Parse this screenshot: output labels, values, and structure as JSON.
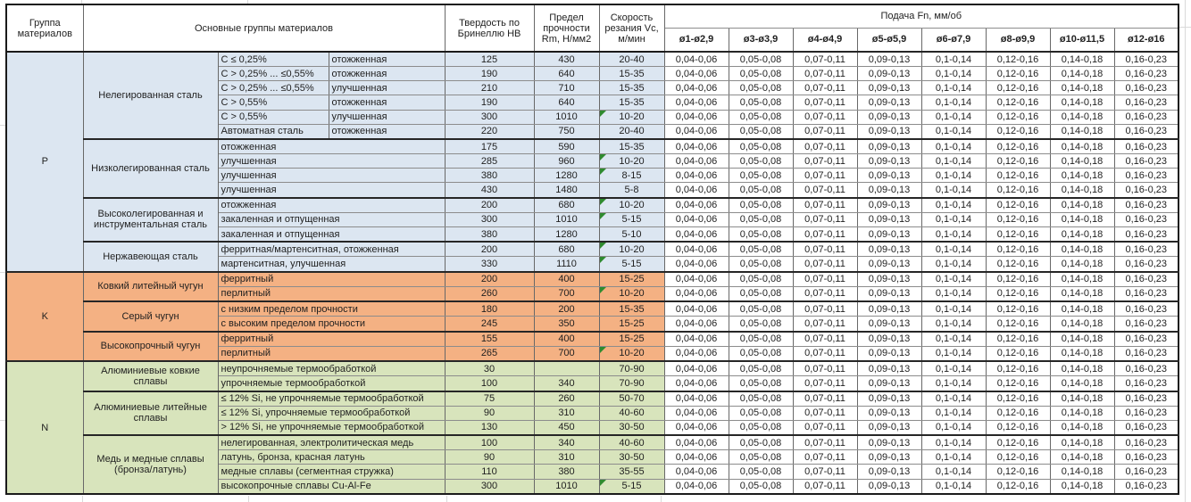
{
  "colors": {
    "group_p": "#dce6f1",
    "group_k": "#f4b183",
    "group_n": "#d8e4bc",
    "note_marker": "#2f8b2f"
  },
  "header": {
    "col_group": "Группа материалов",
    "col_materials": "Основные группы материалов",
    "col_hardness": "Твердость по Бринеллю HB",
    "col_strength": "Предел прочности Rm, Н/мм2",
    "col_speed": "Скорость резания Vc, м/мин",
    "col_feed": "Подача Fn, мм/об",
    "feed_cols": [
      "ø1-ø2,9",
      "ø3-ø3,9",
      "ø4-ø4,9",
      "ø5-ø5,9",
      "ø6-ø7,9",
      "ø8-ø9,9",
      "ø10-ø11,5",
      "ø12-ø16"
    ]
  },
  "feed_values": [
    "0,04-0,06",
    "0,05-0,08",
    "0,07-0,11",
    "0,09-0,13",
    "0,1-0,14",
    "0,12-0,16",
    "0,14-0,18",
    "0,16-0,23"
  ],
  "groups": [
    {
      "code": "P",
      "subgroups": [
        {
          "name": "Нелегированная сталь",
          "rows": [
            {
              "d": [
                "C ≤ 0,25%",
                "отожженная"
              ],
              "hb": "125",
              "rm": "430",
              "vc": "20-40",
              "note": false
            },
            {
              "d": [
                "C > 0,25% ... ≤0,55%",
                "отожженная"
              ],
              "hb": "190",
              "rm": "640",
              "vc": "15-35",
              "note": false
            },
            {
              "d": [
                "C > 0,25% ... ≤0,55%",
                "улучшенная"
              ],
              "hb": "210",
              "rm": "710",
              "vc": "15-35",
              "note": false
            },
            {
              "d": [
                "C > 0,55%",
                "отожженная"
              ],
              "hb": "190",
              "rm": "640",
              "vc": "15-35",
              "note": false
            },
            {
              "d": [
                "C > 0,55%",
                "улучшенная"
              ],
              "hb": "300",
              "rm": "1010",
              "vc": "10-20",
              "note": true
            },
            {
              "d": [
                "Автоматная сталь",
                "отожженная"
              ],
              "hb": "220",
              "rm": "750",
              "vc": "20-40",
              "note": false
            }
          ]
        },
        {
          "name": "Низколегированная сталь",
          "rows": [
            {
              "d": [
                "отожженная"
              ],
              "hb": "175",
              "rm": "590",
              "vc": "15-35",
              "note": false
            },
            {
              "d": [
                "улучшенная"
              ],
              "hb": "285",
              "rm": "960",
              "vc": "10-20",
              "note": true
            },
            {
              "d": [
                "улучшенная"
              ],
              "hb": "380",
              "rm": "1280",
              "vc": "8-15",
              "note": true
            },
            {
              "d": [
                "улучшенная"
              ],
              "hb": "430",
              "rm": "1480",
              "vc": "5-8",
              "note": false
            }
          ]
        },
        {
          "name": "Высоколегированная и инструментальная сталь",
          "rows": [
            {
              "d": [
                "отожженная"
              ],
              "hb": "200",
              "rm": "680",
              "vc": "10-20",
              "note": true
            },
            {
              "d": [
                "закаленная и отпущенная"
              ],
              "hb": "300",
              "rm": "1010",
              "vc": "5-15",
              "note": true
            },
            {
              "d": [
                "закаленная и отпущенная"
              ],
              "hb": "380",
              "rm": "1280",
              "vc": "5-10",
              "note": false
            }
          ]
        },
        {
          "name": "Нержавеющая сталь",
          "rows": [
            {
              "d": [
                "ферритная/мартенситная, отожженная"
              ],
              "hb": "200",
              "rm": "680",
              "vc": "10-20",
              "note": true
            },
            {
              "d": [
                "мартенситная, улучшенная"
              ],
              "hb": "330",
              "rm": "1110",
              "vc": "5-15",
              "note": true
            }
          ]
        }
      ]
    },
    {
      "code": "K",
      "subgroups": [
        {
          "name": "Ковкий литейный чугун",
          "rows": [
            {
              "d": [
                "ферритный"
              ],
              "hb": "200",
              "rm": "400",
              "vc": "15-25",
              "note": false
            },
            {
              "d": [
                "перлитный"
              ],
              "hb": "260",
              "rm": "700",
              "vc": "10-20",
              "note": true
            }
          ]
        },
        {
          "name": "Серый чугун",
          "rows": [
            {
              "d": [
                "с низким пределом прочности"
              ],
              "hb": "180",
              "rm": "200",
              "vc": "15-35",
              "note": false
            },
            {
              "d": [
                "с высоким пределом прочности"
              ],
              "hb": "245",
              "rm": "350",
              "vc": "15-25",
              "note": false
            }
          ]
        },
        {
          "name": "Высокопрочный чугун",
          "rows": [
            {
              "d": [
                "ферритный"
              ],
              "hb": "155",
              "rm": "400",
              "vc": "15-25",
              "note": false
            },
            {
              "d": [
                "перлитный"
              ],
              "hb": "265",
              "rm": "700",
              "vc": "10-20",
              "note": true
            }
          ]
        }
      ]
    },
    {
      "code": "N",
      "subgroups": [
        {
          "name": "Алюминиевые ковкие сплавы",
          "rows": [
            {
              "d": [
                "неупрочняемые термообработкой"
              ],
              "hb": "30",
              "rm": "",
              "vc": "70-90",
              "note": false
            },
            {
              "d": [
                "упрочняемые термообработкой"
              ],
              "hb": "100",
              "rm": "340",
              "vc": "70-90",
              "note": false
            }
          ]
        },
        {
          "name": "Алюминиевые литейные сплавы",
          "rows": [
            {
              "d": [
                "≤ 12% Si, не упрочняемые термообработкой"
              ],
              "hb": "75",
              "rm": "260",
              "vc": "50-70",
              "note": false
            },
            {
              "d": [
                "≤ 12% Si, упрочняемые термообработкой"
              ],
              "hb": "90",
              "rm": "310",
              "vc": "40-60",
              "note": false
            },
            {
              "d": [
                "> 12% Si, не упрочняемые термообработкой"
              ],
              "hb": "130",
              "rm": "450",
              "vc": "30-50",
              "note": false
            }
          ]
        },
        {
          "name": "Медь и медные сплавы (бронза/латунь)",
          "rows": [
            {
              "d": [
                "нелегированная, электролитическая медь"
              ],
              "hb": "100",
              "rm": "340",
              "vc": "40-60",
              "note": false
            },
            {
              "d": [
                "латунь, бронза, красная латунь"
              ],
              "hb": "90",
              "rm": "310",
              "vc": "30-50",
              "note": false
            },
            {
              "d": [
                "медные сплавы (сегментная стружка)"
              ],
              "hb": "110",
              "rm": "380",
              "vc": "35-55",
              "note": false
            },
            {
              "d": [
                "высокопрочные сплавы Cu-Al-Fe"
              ],
              "hb": "300",
              "rm": "1010",
              "vc": "5-15",
              "note": true
            }
          ]
        }
      ]
    }
  ]
}
